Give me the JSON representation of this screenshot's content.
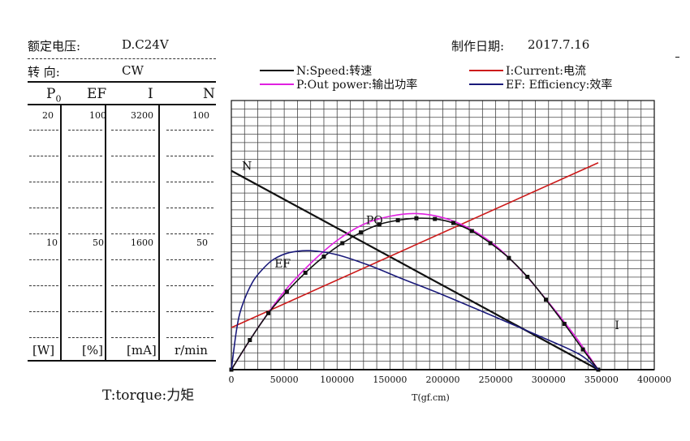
{
  "header": {
    "rated_voltage_label": "额定电压:",
    "rated_voltage_value": "D.C24V",
    "date_label": "制作日期:",
    "date_value": "2017.7.16",
    "direction_label": "转    向:",
    "direction_value": "CW"
  },
  "columns": [
    {
      "id": "p0",
      "head": "P",
      "sub": "0",
      "top": "20",
      "mid": "10",
      "unit": "[W]"
    },
    {
      "id": "ef",
      "head": "EF",
      "sub": "",
      "top": "100",
      "mid": "50",
      "unit": "[%]"
    },
    {
      "id": "i",
      "head": "I",
      "sub": "",
      "top": "3200",
      "mid": "1600",
      "unit": "[mA]"
    },
    {
      "id": "n",
      "head": "N",
      "sub": "",
      "top": "100",
      "mid": "50",
      "unit": "r/min"
    }
  ],
  "torque_caption": "T:torque:力矩",
  "legend": [
    {
      "key": "N",
      "text": "N:Speed:转速",
      "color": "#111111"
    },
    {
      "key": "I",
      "text": "I:Current:电流",
      "color": "#cc1a1a"
    },
    {
      "key": "P",
      "text": "P:Out power:输出功率",
      "color": "#e020e0"
    },
    {
      "key": "EF",
      "text": "EF: Efficiency:效率",
      "color": "#1a1a7a"
    }
  ],
  "chart_data": {
    "type": "line",
    "xlabel": "T(gf.cm)",
    "xlim": [
      0,
      400000
    ],
    "xticks": [
      "0",
      "50000",
      "100000",
      "150000",
      "200000",
      "250000",
      "300000",
      "350000",
      "400000"
    ],
    "grid": true,
    "axes": {
      "N": {
        "unit": "r/min",
        "range": [
          0,
          100
        ]
      },
      "I": {
        "unit": "mA",
        "range": [
          0,
          3200
        ]
      },
      "P": {
        "unit": "W",
        "range": [
          0,
          20
        ]
      },
      "EF": {
        "unit": "%",
        "range": [
          0,
          100
        ]
      }
    },
    "curve_labels": [
      {
        "text": "N",
        "series": "N",
        "at_x": 10000
      },
      {
        "text": "I",
        "series": "I",
        "at_x": 355000
      },
      {
        "text": "PO",
        "series": "P",
        "at_x": 135000
      },
      {
        "text": "EF",
        "series": "EF",
        "at_x": 47000
      }
    ],
    "series": [
      {
        "name": "N",
        "color": "#111111",
        "x": [
          0,
          347000
        ],
        "y": [
          73.9,
          0
        ]
      },
      {
        "name": "I",
        "color": "#cc1a1a",
        "x": [
          0,
          347000
        ],
        "y": [
          500,
          2460
        ]
      },
      {
        "name": "P",
        "color": "#e020e0",
        "x": [
          0,
          25000,
          50000,
          75000,
          100000,
          125000,
          150000,
          175000,
          200000,
          225000,
          250000,
          275000,
          300000,
          325000,
          347000
        ],
        "y": [
          0,
          3.1,
          5.8,
          7.9,
          9.6,
          10.8,
          11.4,
          11.6,
          11.3,
          10.5,
          9.2,
          7.3,
          5.0,
          2.5,
          0
        ]
      },
      {
        "name": "P (marked)",
        "color": "#111111",
        "marker": "square",
        "x": [
          0,
          17500,
          35000,
          52500,
          70000,
          87500,
          105000,
          122500,
          140000,
          157500,
          175000,
          192500,
          210000,
          227500,
          245000,
          262500,
          280000,
          297500,
          315000,
          332500,
          347000
        ],
        "y": [
          0,
          2.2,
          4.2,
          5.8,
          7.2,
          8.4,
          9.4,
          10.2,
          10.8,
          11.1,
          11.25,
          11.2,
          10.9,
          10.3,
          9.4,
          8.3,
          6.9,
          5.2,
          3.4,
          1.5,
          0
        ]
      },
      {
        "name": "EF",
        "color": "#1a1a7a",
        "x": [
          0,
          5000,
          10000,
          20000,
          30000,
          40000,
          55000,
          75000,
          100000,
          130000,
          160000,
          200000,
          250000,
          300000,
          330000,
          347000
        ],
        "y": [
          0,
          15,
          23.5,
          32.5,
          37.5,
          41,
          43.5,
          44.2,
          42.7,
          38.8,
          34,
          27.8,
          19.5,
          11,
          5.5,
          0
        ]
      }
    ]
  }
}
